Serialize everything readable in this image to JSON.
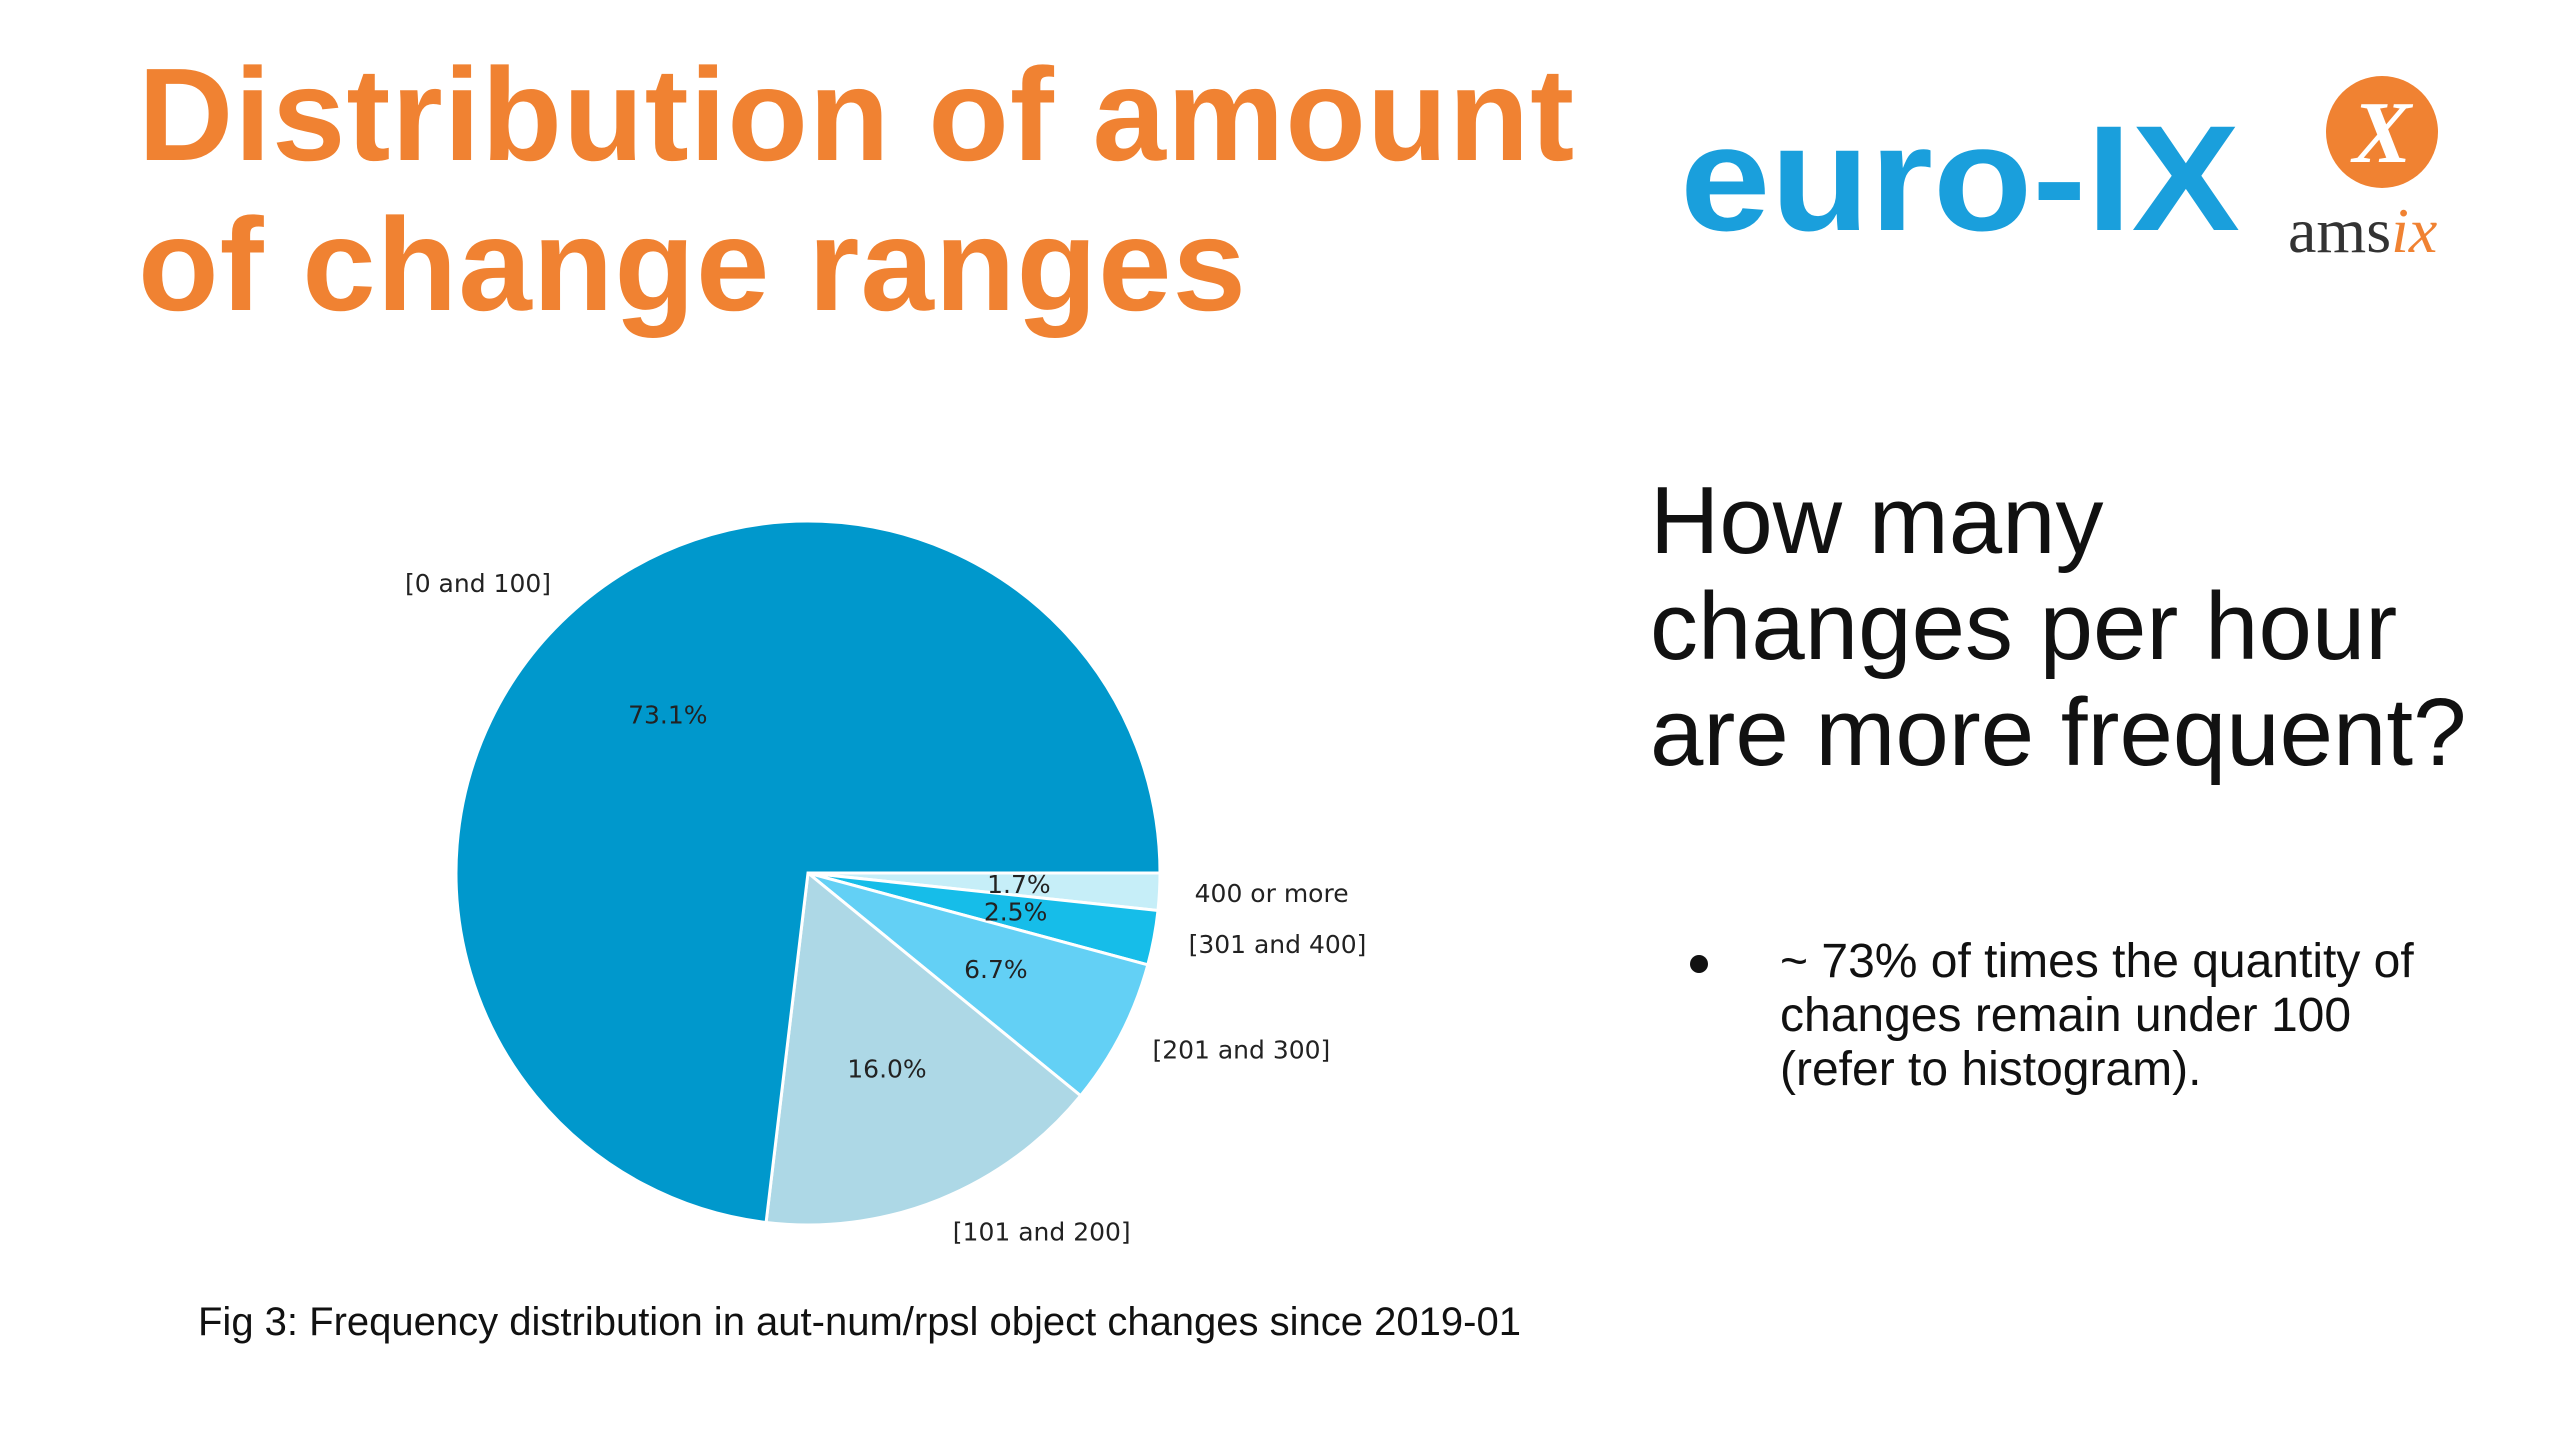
{
  "title": {
    "line1": "Distribution of amount",
    "line2": "of change ranges"
  },
  "logos": {
    "euro_ix": "euro-IX",
    "amsix_mark": "X",
    "amsix_text_main": "ams",
    "amsix_text_accent": "ix"
  },
  "question": {
    "line1": "How many",
    "line2": "changes per hour",
    "line3": "are more frequent?"
  },
  "bullets": [
    {
      "line1": "~ 73% of times the quantity of",
      "line2": "changes remain under 100",
      "line3": "(refer to histogram)."
    }
  ],
  "caption": "Fig 3: Frequency distribution in aut-num/rpsl object changes since 2019-01",
  "colors": {
    "title_orange": "#f08232",
    "euro_ix_blue": "#1a9fdc",
    "amsix_orange": "#f08232"
  },
  "chart_data": {
    "type": "pie",
    "start_angle_deg": 0,
    "direction": "clockwise",
    "series": [
      {
        "label": "400 or more",
        "value": 1.7,
        "pct_label": "1.7%",
        "color": "#c6eef8"
      },
      {
        "label": "[301 and 400]",
        "value": 2.5,
        "pct_label": "2.5%",
        "color": "#16bde9"
      },
      {
        "label": "[201 and 300]",
        "value": 6.7,
        "pct_label": "6.7%",
        "color": "#63d0f5"
      },
      {
        "label": "[101 and 200]",
        "value": 16.0,
        "pct_label": "16.0%",
        "color": "#add8e6"
      },
      {
        "label": "[0 and 100]",
        "value": 73.1,
        "pct_label": "73.1%",
        "color": "#0098cc"
      }
    ]
  }
}
